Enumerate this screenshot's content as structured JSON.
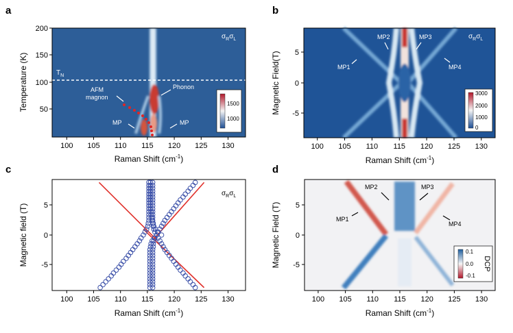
{
  "panels": [
    {
      "letter": "a",
      "polarization": {
        "a": "σ",
        "sub1": "R",
        "b": "σ",
        "sub2": "L"
      },
      "xlabel": "Raman Shift (cm",
      "xlabel_sup": "-1",
      "xlabel_end": ")",
      "ylabel": "Temperature (K)",
      "x_ticks": [
        "100",
        "105",
        "110",
        "115",
        "120",
        "125",
        "130"
      ],
      "y_ticks": [
        "200",
        "150",
        "100",
        "50"
      ],
      "annotations": {
        "tn_main": "T",
        "tn_sub": "N",
        "phonon": "Phonon",
        "afm1": "AFM",
        "afm2": "magnon",
        "mp_left": "MP",
        "mp_right": "MP"
      },
      "colorbar_ticks": [
        "1500",
        "1000"
      ]
    },
    {
      "letter": "b",
      "polarization": {
        "a": "σ",
        "sub1": "R",
        "b": "σ",
        "sub2": "L"
      },
      "xlabel": "Raman Shift (cm",
      "xlabel_sup": "-1",
      "xlabel_end": ")",
      "ylabel": "Magnetic Field(T)",
      "x_ticks": [
        "100",
        "105",
        "110",
        "115",
        "120",
        "125",
        "130"
      ],
      "y_ticks": [
        "5",
        "0",
        "-5"
      ],
      "annotations": {
        "mp1": "MP1",
        "mp2": "MP2",
        "mp3": "MP3",
        "mp4": "MP4"
      },
      "colorbar_ticks": [
        "3000",
        "2000",
        "1000",
        "0"
      ]
    },
    {
      "letter": "c",
      "polarization": {
        "a": "σ",
        "sub1": "R",
        "b": "σ",
        "sub2": "L"
      },
      "xlabel": "Raman Shift (cm",
      "xlabel_sup": "-1",
      "xlabel_end": ")",
      "ylabel": "Magnetic field (T)",
      "x_ticks": [
        "100",
        "105",
        "110",
        "115",
        "120",
        "125",
        "130"
      ],
      "y_ticks": [
        "5",
        "0",
        "-5"
      ]
    },
    {
      "letter": "d",
      "xlabel": "Raman Shift (cm",
      "xlabel_sup": "-1",
      "xlabel_end": ")",
      "ylabel": "Magnetic Field (T)",
      "x_ticks": [
        "100",
        "105",
        "110",
        "115",
        "120",
        "125",
        "130"
      ],
      "y_ticks": [
        "5",
        "0",
        "-5"
      ],
      "annotations": {
        "mp1": "MP1",
        "mp2": "MP2",
        "mp3": "MP3",
        "mp4": "MP4"
      },
      "colorbar_title": "DCP",
      "colorbar_ticks": [
        "0.1",
        "0.0",
        "-0.1"
      ]
    }
  ],
  "chart_data": [
    {
      "type": "heatmap",
      "panel": "a",
      "xlim": [
        97.5,
        132.5
      ],
      "ylim": [
        5,
        200
      ],
      "colorbar_range": [
        700,
        1700
      ],
      "tn_temperature": 105,
      "modes": [
        {
          "label": "Phonon",
          "center_cm": 115.3,
          "T_range": [
            5,
            200
          ]
        },
        {
          "label": "AFM magnon",
          "center_cm_at_5K": 115.3,
          "center_cm_at_60K": 110
        }
      ]
    },
    {
      "type": "heatmap",
      "panel": "b",
      "xlim": [
        97.5,
        132.5
      ],
      "ylim": [
        -9,
        9
      ],
      "colorbar_range": [
        0,
        3000
      ],
      "modes": [
        {
          "label": "MP1",
          "slope_cm_per_T": -1.0
        },
        {
          "label": "MP2",
          "slope_cm_per_T": -0.1
        },
        {
          "label": "MP3",
          "slope_cm_per_T": 0.1
        },
        {
          "label": "MP4",
          "slope_cm_per_T": 1.0
        }
      ]
    },
    {
      "type": "scatter",
      "panel": "c",
      "xlim": [
        97.5,
        132.5
      ],
      "ylim": [
        -9.5,
        9.5
      ],
      "field_T": [
        -9,
        -8.5,
        -8,
        -7.5,
        -7,
        -6.5,
        -6,
        -5.5,
        -5,
        -4.5,
        -4,
        -3.5,
        -3,
        -2.5,
        -2,
        -1.5,
        -1,
        -0.5,
        0,
        0.5,
        1,
        1.5,
        2,
        2.5,
        3,
        3.5,
        4,
        4.5,
        5,
        5.5,
        6,
        6.5,
        7,
        7.5,
        8,
        8.5,
        9
      ],
      "series": [
        {
          "values_cm": [
            106.2,
            106.7,
            107.2,
            107.7,
            108.2,
            108.6,
            109.1,
            109.6,
            110.0,
            110.4,
            110.9,
            111.3,
            111.7,
            112.1,
            112.5,
            112.9,
            113.3,
            113.6,
            114.0,
            114.3,
            114.6,
            114.8,
            114.9,
            115.0,
            115.0,
            115.0,
            115.0,
            115.0,
            115.0,
            115.0,
            115.0,
            115.0,
            115.0,
            115.0,
            115.0,
            115.0,
            115.0
          ]
        },
        {
          "values_cm": [
            115.2,
            115.2,
            115.2,
            115.2,
            115.2,
            115.2,
            115.2,
            115.2,
            115.2,
            115.2,
            115.2,
            115.2,
            115.2,
            115.2,
            115.3,
            115.4,
            115.6,
            116.0,
            117.3,
            116.6,
            116.2,
            115.9,
            115.7,
            115.6,
            115.5,
            115.4,
            115.4,
            115.3,
            115.3,
            115.3,
            115.3,
            115.3,
            115.3,
            115.3,
            115.3,
            115.3,
            115.3
          ]
        },
        {
          "values_cm": [
            115.7,
            115.7,
            115.7,
            115.7,
            115.7,
            115.7,
            115.7,
            115.7,
            115.7,
            115.7,
            115.7,
            115.7,
            115.7,
            115.7,
            115.8,
            115.8,
            115.9,
            116.1,
            116.4,
            116.7,
            117.0,
            117.3,
            117.6,
            117.9,
            118.3,
            118.7,
            119.1,
            119.5,
            119.9,
            120.3,
            120.7,
            121.2,
            121.6,
            122.1,
            122.5,
            123.0,
            123.4
          ]
        },
        {
          "values_cm": [
            123.4,
            123.0,
            122.5,
            122.1,
            121.6,
            121.2,
            120.7,
            120.3,
            119.9,
            119.5,
            119.1,
            118.7,
            118.3,
            117.9,
            117.6,
            117.3,
            117.0,
            116.7,
            116.4,
            116.1,
            115.9,
            115.8,
            115.8,
            115.7,
            115.7,
            115.7,
            115.7,
            115.7,
            115.7,
            115.7,
            115.7,
            115.7,
            115.7,
            115.7,
            115.7,
            115.7,
            115.7
          ]
        }
      ],
      "fit_lines": [
        {
          "x": [
            106.0,
            116.5
          ],
          "y": [
            9.0,
            -0.9
          ]
        },
        {
          "x": [
            114.0,
            125.0
          ],
          "y": [
            1.0,
            -9.0
          ]
        },
        {
          "x": [
            115.8,
            125.0
          ],
          "y": [
            -0.8,
            9.0
          ]
        }
      ]
    },
    {
      "type": "heatmap",
      "panel": "d",
      "xlim": [
        97.5,
        132.5
      ],
      "ylim": [
        -9.5,
        9.5
      ],
      "colorbar_range": [
        -0.15,
        0.15
      ]
    }
  ]
}
